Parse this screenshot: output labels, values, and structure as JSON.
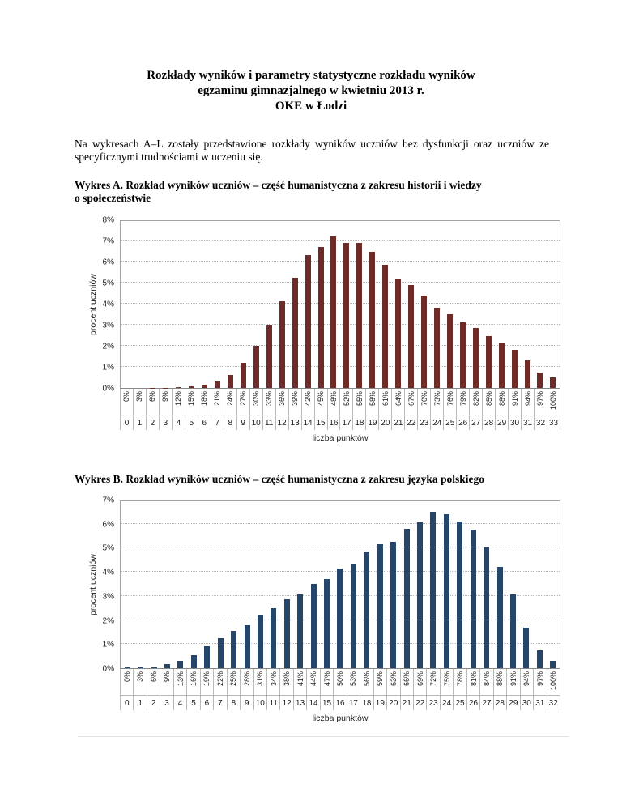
{
  "page": {
    "title_lines": [
      "Rozkłady wyników i parametry statystyczne rozkładu wyników",
      "egzaminu gimnazjalnego w kwietniu 2013 r.",
      "OKE w Łodzi"
    ],
    "intro": "Na wykresach A–L zostały przedstawione rozkłady wyników uczniów bez dysfunkcji oraz uczniów ze specyficznymi trudnościami w uczeniu się."
  },
  "charts": [
    {
      "heading_line1": "Wykres A. Rozkład wyników uczniów – część humanistyczna z zakresu historii i wiedzy",
      "heading_line2": "o społeczeństwie"
    },
    {
      "heading_line1": "Wykres B. Rozkład wyników uczniów – część humanistyczna z zakresu języka polskiego",
      "heading_line2": ""
    }
  ],
  "chart_data": [
    {
      "type": "bar",
      "title": "Wykres A. Rozkład wyników uczniów – część humanistyczna z zakresu historii i wiedzy o społeczeństwie",
      "xlabel": "liczba punktów",
      "ylabel": "procent uczniów",
      "ylim": [
        0,
        8
      ],
      "ytick_labels": [
        "8%",
        "7%",
        "6%",
        "5%",
        "4%",
        "3%",
        "2%",
        "1%",
        "0%"
      ],
      "grid": "horizontal dotted, every 1%",
      "legend": "none",
      "bar_color": "#6d2c28",
      "categories_points": [
        "0",
        "1",
        "2",
        "3",
        "4",
        "5",
        "6",
        "7",
        "8",
        "9",
        "10",
        "11",
        "12",
        "13",
        "14",
        "15",
        "16",
        "17",
        "18",
        "19",
        "20",
        "21",
        "22",
        "23",
        "24",
        "25",
        "26",
        "27",
        "28",
        "29",
        "30",
        "31",
        "32",
        "33"
      ],
      "categories_percent": [
        "0%",
        "3%",
        "6%",
        "9%",
        "12%",
        "15%",
        "18%",
        "21%",
        "24%",
        "27%",
        "30%",
        "33%",
        "36%",
        "39%",
        "42%",
        "45%",
        "48%",
        "52%",
        "55%",
        "58%",
        "61%",
        "64%",
        "67%",
        "70%",
        "73%",
        "76%",
        "79%",
        "82%",
        "85%",
        "88%",
        "91%",
        "94%",
        "97%",
        "100%"
      ],
      "values": [
        0.0,
        0.0,
        0.02,
        0.02,
        0.03,
        0.07,
        0.15,
        0.3,
        0.6,
        1.2,
        2.0,
        3.0,
        4.1,
        5.25,
        6.3,
        6.7,
        7.2,
        6.9,
        6.9,
        6.45,
        5.85,
        5.2,
        4.9,
        4.4,
        3.8,
        3.5,
        3.1,
        2.85,
        2.45,
        2.1,
        1.8,
        1.3,
        0.75,
        0.5
      ]
    },
    {
      "type": "bar",
      "title": "Wykres B. Rozkład wyników uczniów – część humanistyczna z zakresu języka polskiego",
      "xlabel": "liczba punktów",
      "ylabel": "procent uczniów",
      "ylim": [
        0,
        7
      ],
      "ytick_labels": [
        "7%",
        "6%",
        "5%",
        "4%",
        "3%",
        "2%",
        "1%",
        "0%"
      ],
      "grid": "horizontal dotted, every 1%",
      "legend": "none",
      "bar_color": "#26456b",
      "categories_points": [
        "0",
        "1",
        "2",
        "3",
        "4",
        "5",
        "6",
        "7",
        "8",
        "9",
        "10",
        "11",
        "12",
        "13",
        "14",
        "15",
        "16",
        "17",
        "18",
        "19",
        "20",
        "21",
        "22",
        "23",
        "24",
        "25",
        "26",
        "27",
        "28",
        "29",
        "30",
        "31",
        "32"
      ],
      "categories_percent": [
        "0%",
        "3%",
        "6%",
        "9%",
        "13%",
        "16%",
        "19%",
        "22%",
        "25%",
        "28%",
        "31%",
        "34%",
        "38%",
        "41%",
        "44%",
        "47%",
        "50%",
        "53%",
        "56%",
        "59%",
        "63%",
        "66%",
        "69%",
        "72%",
        "75%",
        "78%",
        "81%",
        "84%",
        "88%",
        "91%",
        "94%",
        "97%",
        "100%"
      ],
      "values": [
        0.02,
        0.02,
        0.05,
        0.18,
        0.3,
        0.55,
        0.9,
        1.25,
        1.55,
        1.8,
        2.2,
        2.5,
        2.85,
        3.05,
        3.5,
        3.7,
        4.15,
        4.35,
        4.85,
        5.15,
        5.25,
        5.8,
        6.05,
        6.5,
        6.4,
        6.1,
        5.75,
        5.0,
        4.2,
        3.05,
        1.7,
        0.75,
        0.3
      ]
    }
  ]
}
